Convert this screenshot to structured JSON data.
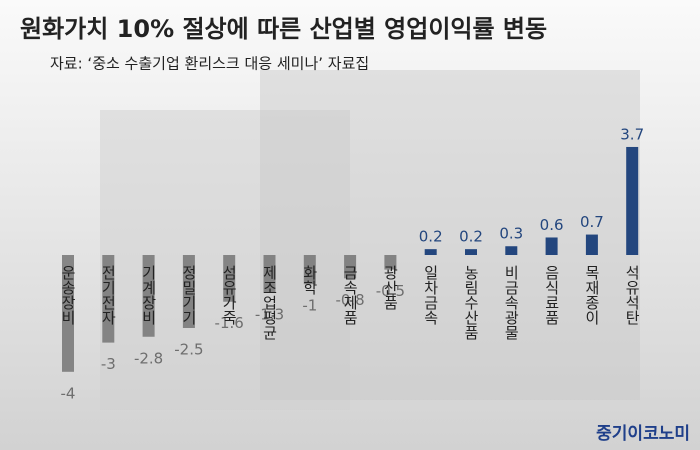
{
  "chart_data": {
    "type": "bar",
    "title": "원화가치 10% 절상에 따른 산업별 영업이익률 변동",
    "subtitle": "자료: ‘중소 수출기업 환리스크 대응 세미나’ 자료집",
    "brand": "중기이코노미",
    "categories": [
      "운송장비",
      "전기전자",
      "기계장비",
      "정밀기기",
      "섬유가죽",
      "제조업평균",
      "화학",
      "금속제품",
      "광산품",
      "일차금속",
      "농림수산품",
      "비금속광물",
      "음식료품",
      "목재종이",
      "석유석탄"
    ],
    "values": [
      -4,
      -3,
      -2.8,
      -2.5,
      -1.6,
      -1.3,
      -1,
      -0.8,
      -0.5,
      0.2,
      0.2,
      0.3,
      0.6,
      0.7,
      3.7
    ],
    "positive_color": "#23467e",
    "negative_color": "#6e6e6e"
  }
}
